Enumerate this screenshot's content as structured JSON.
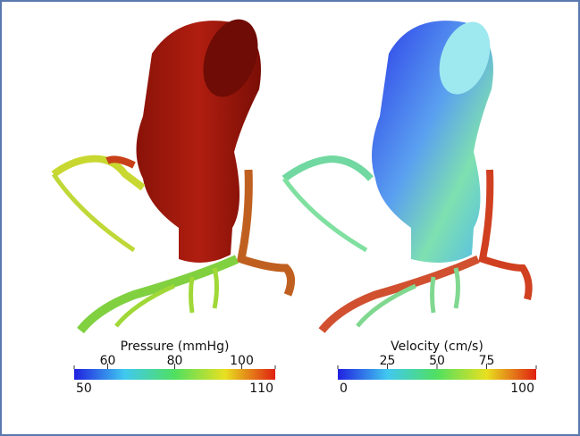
{
  "chart_data": [
    {
      "type": "colorbar",
      "title": "Pressure (mmHg)",
      "xlim": [
        50,
        110
      ],
      "xticks": [
        60,
        80,
        100
      ],
      "colors": [
        "#2020e0",
        "#40c8f0",
        "#50e060",
        "#e8e020",
        "#e02010"
      ]
    },
    {
      "type": "colorbar",
      "title": "Velocity (cm/s)",
      "xlim": [
        0,
        100
      ],
      "xticks": [
        25,
        50,
        75
      ],
      "colors": [
        "#2020e0",
        "#40c8f0",
        "#50e060",
        "#e8e020",
        "#e02010"
      ]
    }
  ]
}
